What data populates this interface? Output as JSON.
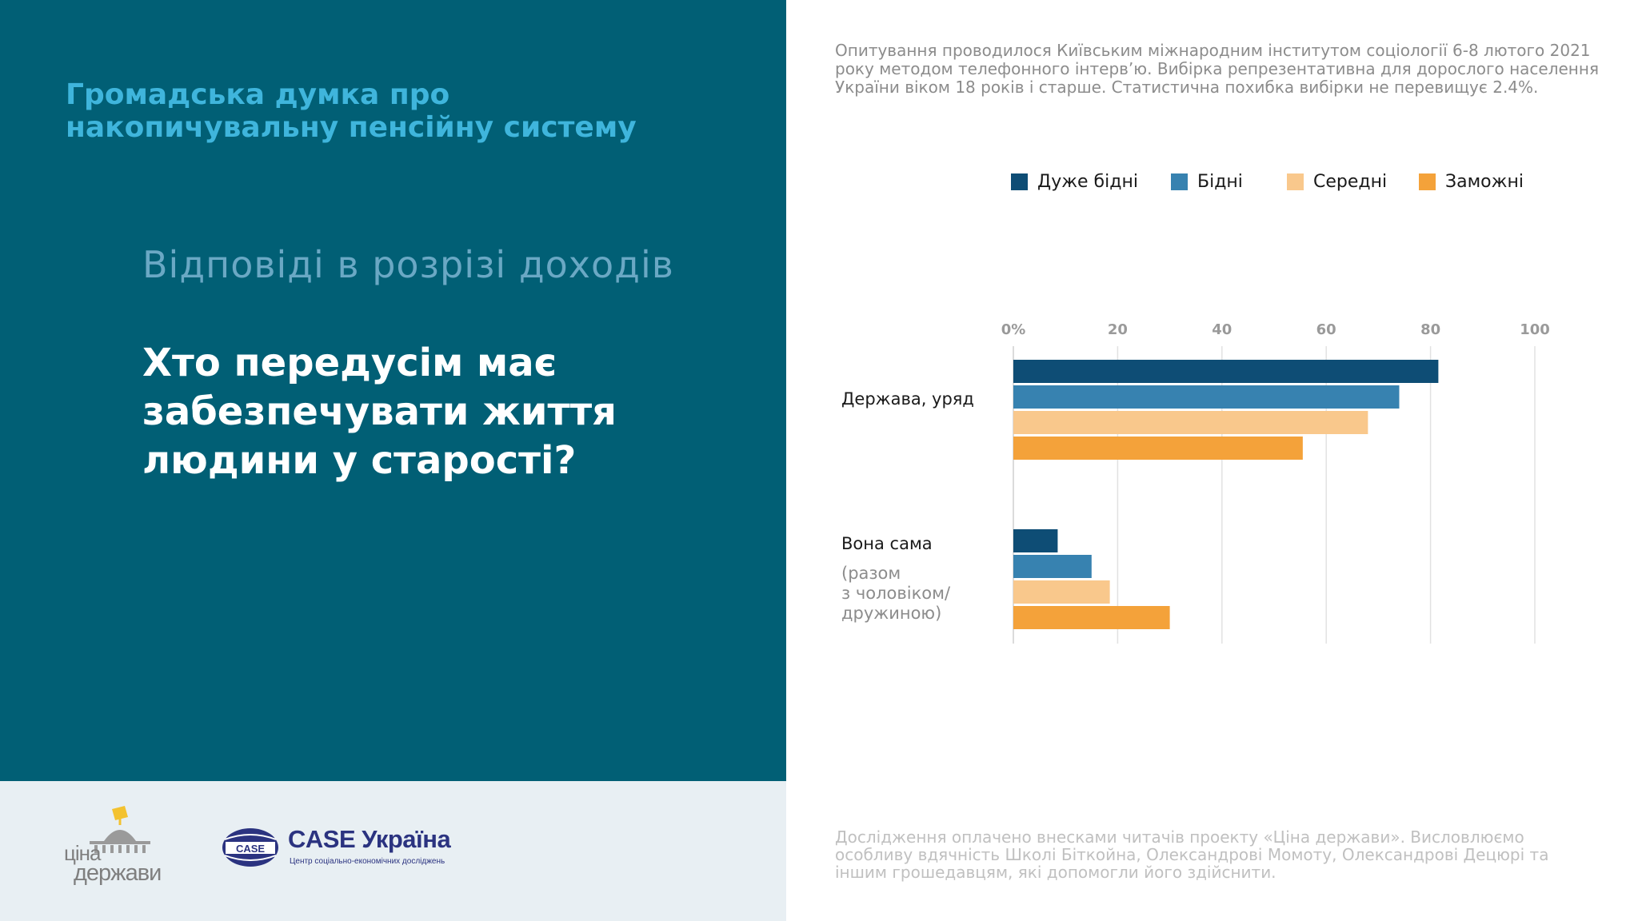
{
  "header": {
    "title": "Громадська думка про накопичувальну пенсійну систему"
  },
  "section": {
    "subtitle": "Відповіді в розрізі доходів",
    "question": "Хто передусім має забезпечувати життя людини у старості?"
  },
  "survey_note": "Опитування проводилося Київським міжнародним інститутом соціології 6-8 лютого 2021 року методом телефонного інтерв’ю. Вибірка репрезентативна для дорослого населення України віком 18 років і старше. Статистична похибка вибірки не перевищує 2.4%.",
  "funding_note": "Дослідження оплачено внесками читачів проекту «Ціна держави». Висловлюємо особливу вдячність Школі Біткойна, Олександрові Момоту, Олександрові Децюрі та іншим грошедавцям, які допомогли його здійснити.",
  "logos": {
    "cina_line1": "ціна",
    "cina_line2": "держави",
    "case_badge": "CASE",
    "case_name": "CASE Україна",
    "case_sub": "Центр соціально-економічних досліджень"
  },
  "colors": {
    "panel": "#015f75",
    "header_title": "#3fb5dc",
    "very_poor": "#0e4d75",
    "poor": "#3782b0",
    "middle": "#f9c88c",
    "wealthy": "#f4a23a"
  },
  "chart_data": {
    "type": "bar",
    "orientation": "horizontal",
    "categories": [
      "Держава, уряд",
      "Вона сама"
    ],
    "category_notes": [
      "",
      "(разом\nз чоловіком/\nдружиною)"
    ],
    "series": [
      {
        "name": "Дуже бідні",
        "values": [
          81.5,
          8.5
        ],
        "color": "#0e4d75"
      },
      {
        "name": "Бідні",
        "values": [
          74,
          15
        ],
        "color": "#3782b0"
      },
      {
        "name": "Середні",
        "values": [
          68,
          18.5
        ],
        "color": "#f9c88c"
      },
      {
        "name": "Заможні",
        "values": [
          55.5,
          30
        ],
        "color": "#f4a23a"
      }
    ],
    "xlim": [
      0,
      100
    ],
    "x_ticks": [
      0,
      20,
      40,
      60,
      80,
      100
    ],
    "x_tick_labels": [
      "0%",
      "20",
      "40",
      "60",
      "80",
      "100"
    ],
    "grid": true,
    "legend": "top"
  }
}
